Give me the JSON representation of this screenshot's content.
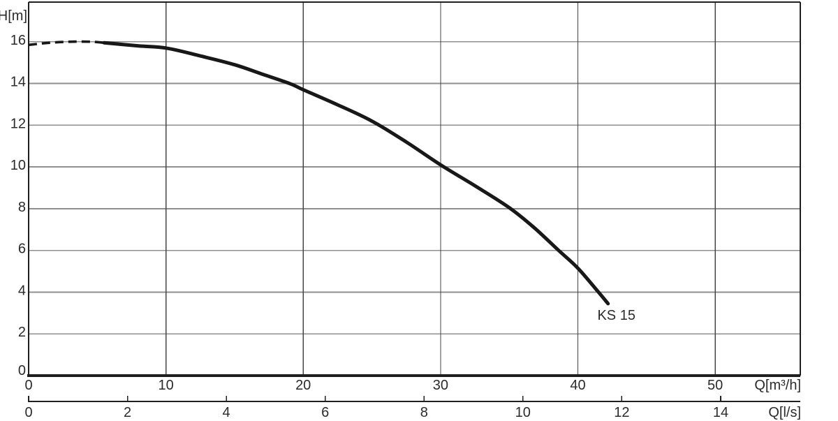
{
  "chart_data": {
    "type": "line",
    "title": "",
    "grid": true,
    "background": "#ffffff",
    "colors": {
      "curve": "#181818",
      "frame": "#1f1f1f",
      "grid_horizontal": "#8f8f8f",
      "grid_vertical": "#454545",
      "text": "#2b2b2b"
    },
    "y_axis": {
      "label": "H[m]",
      "ticks": [
        0,
        2,
        4,
        6,
        8,
        10,
        12,
        14,
        16
      ],
      "range": [
        0,
        17.9
      ]
    },
    "x_axis_primary": {
      "label": "Q[m³/h]",
      "ticks": [
        0,
        10,
        20,
        30,
        40,
        50
      ],
      "range": [
        0,
        56.2
      ]
    },
    "x_axis_secondary": {
      "label": "Q[l/s]",
      "ticks": [
        0,
        2,
        4,
        6,
        8,
        10,
        12,
        14
      ],
      "unit_to_primary": 3.6
    },
    "series": [
      {
        "name": "KS 15",
        "dashed_points": [
          [
            0,
            15.85
          ],
          [
            1.5,
            15.95
          ],
          [
            3,
            16.0
          ],
          [
            4.5,
            16.0
          ],
          [
            5.5,
            15.95
          ]
        ],
        "solid_points": [
          [
            5.5,
            15.95
          ],
          [
            8,
            15.8
          ],
          [
            10,
            15.7
          ],
          [
            12.5,
            15.32
          ],
          [
            15,
            14.9
          ],
          [
            17,
            14.45
          ],
          [
            19,
            14.0
          ],
          [
            20,
            13.7
          ],
          [
            22.5,
            12.98
          ],
          [
            25,
            12.2
          ],
          [
            27.5,
            11.2
          ],
          [
            30,
            10.1
          ],
          [
            32.5,
            9.1
          ],
          [
            35,
            8.05
          ],
          [
            36.8,
            7.1
          ],
          [
            38.6,
            6.0
          ],
          [
            40,
            5.15
          ],
          [
            41.5,
            4.0
          ],
          [
            42.2,
            3.45
          ]
        ]
      }
    ],
    "legend": "none"
  }
}
